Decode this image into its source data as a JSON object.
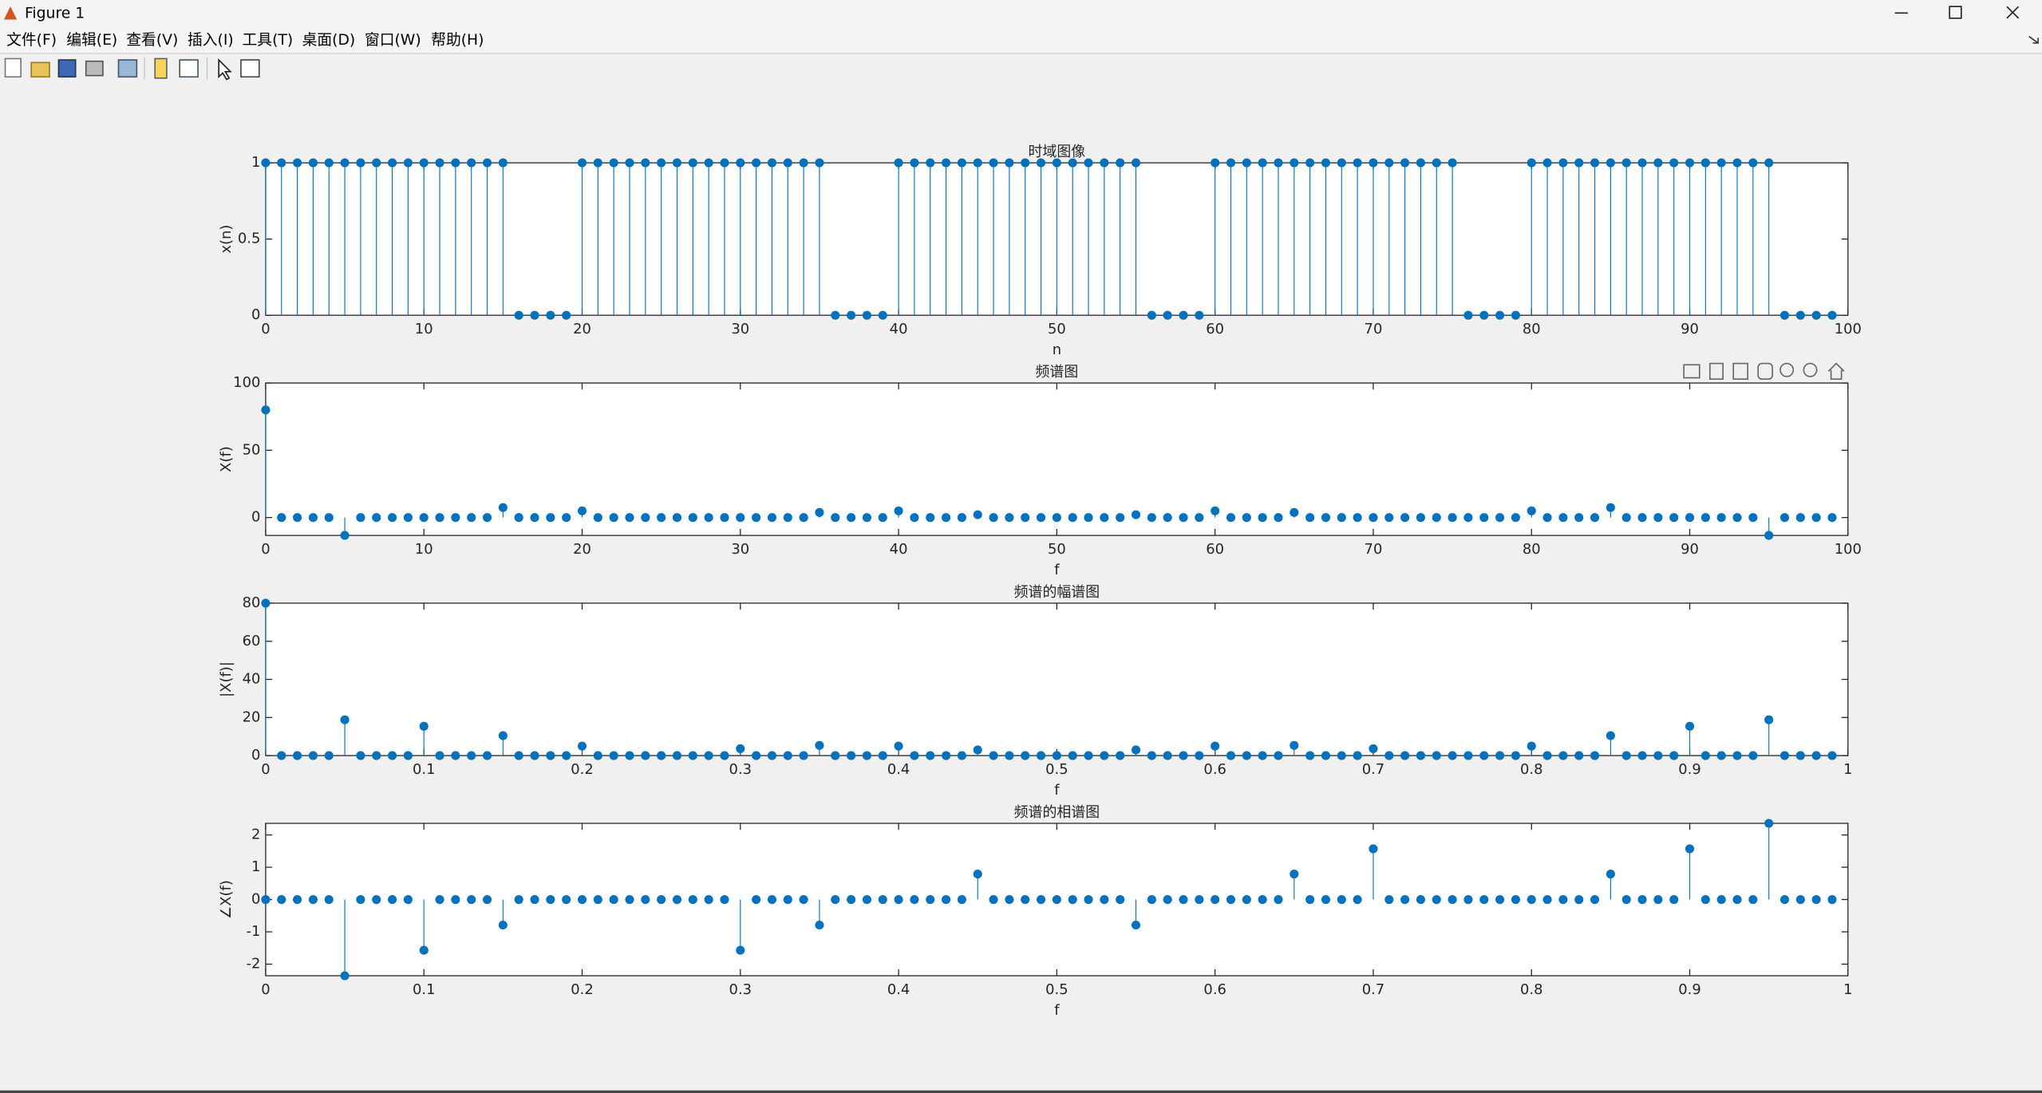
{
  "window": {
    "title": "Figure 1",
    "menu": [
      "文件(F)",
      "编辑(E)",
      "查看(V)",
      "插入(I)",
      "工具(T)",
      "桌面(D)",
      "窗口(W)",
      "帮助(H)"
    ]
  },
  "chart_data": [
    {
      "type": "stem",
      "title": "时域图像",
      "xlabel": "n",
      "ylabel": "x(n)",
      "color": "#0072bd",
      "xlim": [
        0,
        100
      ],
      "ylim": [
        0,
        1
      ],
      "xticks": [
        0,
        10,
        20,
        30,
        40,
        50,
        60,
        70,
        80,
        90,
        100
      ],
      "yticks": [
        0,
        0.5,
        1
      ],
      "x": [
        0,
        1,
        2,
        3,
        4,
        5,
        6,
        7,
        8,
        9,
        10,
        11,
        12,
        13,
        14,
        15,
        16,
        17,
        18,
        19,
        20,
        21,
        22,
        23,
        24,
        25,
        26,
        27,
        28,
        29,
        30,
        31,
        32,
        33,
        34,
        35,
        36,
        37,
        38,
        39,
        40,
        41,
        42,
        43,
        44,
        45,
        46,
        47,
        48,
        49,
        50,
        51,
        52,
        53,
        54,
        55,
        56,
        57,
        58,
        59,
        60,
        61,
        62,
        63,
        64,
        65,
        66,
        67,
        68,
        69,
        70,
        71,
        72,
        73,
        74,
        75,
        76,
        77,
        78,
        79,
        80,
        81,
        82,
        83,
        84,
        85,
        86,
        87,
        88,
        89,
        90,
        91,
        92,
        93,
        94,
        95,
        96,
        97,
        98,
        99
      ],
      "values": [
        1,
        1,
        1,
        1,
        1,
        1,
        1,
        1,
        1,
        1,
        1,
        1,
        1,
        1,
        1,
        1,
        0,
        0,
        0,
        0,
        1,
        1,
        1,
        1,
        1,
        1,
        1,
        1,
        1,
        1,
        1,
        1,
        1,
        1,
        1,
        1,
        0,
        0,
        0,
        0,
        1,
        1,
        1,
        1,
        1,
        1,
        1,
        1,
        1,
        1,
        1,
        1,
        1,
        1,
        1,
        1,
        0,
        0,
        0,
        0,
        1,
        1,
        1,
        1,
        1,
        1,
        1,
        1,
        1,
        1,
        1,
        1,
        1,
        1,
        1,
        1,
        0,
        0,
        0,
        0,
        1,
        1,
        1,
        1,
        1,
        1,
        1,
        1,
        1,
        1,
        1,
        1,
        1,
        1,
        1,
        1,
        0,
        0,
        0,
        0
      ]
    },
    {
      "type": "stem",
      "title": "频谱图",
      "xlabel": "f",
      "ylabel": "X(f)",
      "color": "#0072bd",
      "xlim": [
        0,
        100
      ],
      "ylim": [
        -13.3,
        100
      ],
      "xticks": [
        0,
        10,
        20,
        30,
        40,
        50,
        60,
        70,
        80,
        90,
        100
      ],
      "yticks": [
        0,
        50,
        100
      ],
      "x": [
        0,
        1,
        2,
        3,
        4,
        5,
        6,
        7,
        8,
        9,
        10,
        11,
        12,
        13,
        14,
        15,
        16,
        17,
        18,
        19,
        20,
        21,
        22,
        23,
        24,
        25,
        26,
        27,
        28,
        29,
        30,
        31,
        32,
        33,
        34,
        35,
        36,
        37,
        38,
        39,
        40,
        41,
        42,
        43,
        44,
        45,
        46,
        47,
        48,
        49,
        50,
        51,
        52,
        53,
        54,
        55,
        56,
        57,
        58,
        59,
        60,
        61,
        62,
        63,
        64,
        65,
        66,
        67,
        68,
        69,
        70,
        71,
        72,
        73,
        74,
        75,
        76,
        77,
        78,
        79,
        80,
        81,
        82,
        83,
        84,
        85,
        86,
        87,
        88,
        89,
        90,
        91,
        92,
        93,
        94,
        95,
        96,
        97,
        98,
        99
      ],
      "values": [
        80,
        0,
        0,
        0,
        0,
        -13.29,
        0,
        0,
        0,
        0,
        0,
        0,
        0,
        0,
        0,
        7.4,
        0,
        0,
        0,
        0,
        5,
        0,
        0,
        0,
        0,
        0,
        0,
        0,
        0,
        0,
        0,
        0,
        0,
        0,
        0,
        3.78,
        0,
        0,
        0,
        0,
        5,
        0,
        0,
        0,
        0,
        2.11,
        0,
        0,
        0,
        0,
        0,
        0,
        0,
        0,
        0,
        2.11,
        0,
        0,
        0,
        0,
        5,
        0,
        0,
        0,
        0,
        3.78,
        0,
        0,
        0,
        0,
        0,
        0,
        0,
        0,
        0,
        0,
        0,
        0,
        0,
        0,
        5,
        0,
        0,
        0,
        0,
        7.4,
        0,
        0,
        0,
        0,
        0,
        0,
        0,
        0,
        0,
        -13.29,
        0,
        0,
        0,
        0
      ]
    },
    {
      "type": "stem",
      "title": "频谱的幅谱图",
      "xlabel": "f",
      "ylabel": "|X(f)|",
      "color": "#0072bd",
      "xlim": [
        0,
        1
      ],
      "ylim": [
        0,
        80
      ],
      "xticks": [
        0,
        0.1,
        0.2,
        0.3,
        0.4,
        0.5,
        0.6,
        0.7,
        0.8,
        0.9,
        1
      ],
      "yticks": [
        0,
        20,
        40,
        60,
        80
      ],
      "x": [
        0,
        0.01,
        0.02,
        0.03,
        0.04,
        0.05,
        0.06,
        0.07,
        0.08,
        0.09,
        0.1,
        0.11,
        0.12,
        0.13,
        0.14,
        0.15,
        0.16,
        0.17,
        0.18,
        0.19,
        0.2,
        0.21,
        0.22,
        0.23,
        0.24,
        0.25,
        0.26,
        0.27,
        0.28,
        0.29,
        0.3,
        0.31,
        0.32,
        0.33,
        0.34,
        0.35,
        0.36,
        0.37,
        0.38,
        0.39,
        0.4,
        0.41,
        0.42,
        0.43,
        0.44,
        0.45,
        0.46,
        0.47,
        0.48,
        0.49,
        0.5,
        0.51,
        0.52,
        0.53,
        0.54,
        0.55,
        0.56,
        0.57,
        0.58,
        0.59,
        0.6,
        0.61,
        0.62,
        0.63,
        0.64,
        0.65,
        0.66,
        0.67,
        0.68,
        0.69,
        0.7,
        0.71,
        0.72,
        0.73,
        0.74,
        0.75,
        0.76,
        0.77,
        0.78,
        0.79,
        0.8,
        0.81,
        0.82,
        0.83,
        0.84,
        0.85,
        0.86,
        0.87,
        0.88,
        0.89,
        0.9,
        0.91,
        0.92,
        0.93,
        0.94,
        0.95,
        0.96,
        0.97,
        0.98,
        0.99
      ],
      "values": [
        80,
        0,
        0,
        0,
        0,
        18.79,
        0,
        0,
        0,
        0,
        15.39,
        0,
        0,
        0,
        0,
        10.47,
        0,
        0,
        0,
        0,
        5,
        0,
        0,
        0,
        0,
        0,
        0,
        0,
        0,
        0,
        3.63,
        0,
        0,
        0,
        0,
        5.34,
        0,
        0,
        0,
        0,
        5,
        0,
        0,
        0,
        0,
        2.98,
        0,
        0,
        0,
        0,
        0,
        0,
        0,
        0,
        0,
        2.98,
        0,
        0,
        0,
        0,
        5,
        0,
        0,
        0,
        0,
        5.34,
        0,
        0,
        0,
        0,
        3.63,
        0,
        0,
        0,
        0,
        0,
        0,
        0,
        0,
        0,
        5,
        0,
        0,
        0,
        0,
        10.47,
        0,
        0,
        0,
        0,
        15.39,
        0,
        0,
        0,
        0,
        18.79,
        0,
        0,
        0,
        0
      ]
    },
    {
      "type": "stem",
      "title": "频谱的相谱图",
      "xlabel": "f",
      "ylabel": "∠X(f)",
      "color": "#0072bd",
      "xlim": [
        0,
        1
      ],
      "ylim": [
        -2.36,
        2.36
      ],
      "xticks": [
        0,
        0.1,
        0.2,
        0.3,
        0.4,
        0.5,
        0.6,
        0.7,
        0.8,
        0.9,
        1
      ],
      "yticks": [
        -2,
        -1,
        0,
        1,
        2
      ],
      "x": [
        0,
        0.01,
        0.02,
        0.03,
        0.04,
        0.05,
        0.06,
        0.07,
        0.08,
        0.09,
        0.1,
        0.11,
        0.12,
        0.13,
        0.14,
        0.15,
        0.16,
        0.17,
        0.18,
        0.19,
        0.2,
        0.21,
        0.22,
        0.23,
        0.24,
        0.25,
        0.26,
        0.27,
        0.28,
        0.29,
        0.3,
        0.31,
        0.32,
        0.33,
        0.34,
        0.35,
        0.36,
        0.37,
        0.38,
        0.39,
        0.4,
        0.41,
        0.42,
        0.43,
        0.44,
        0.45,
        0.46,
        0.47,
        0.48,
        0.49,
        0.5,
        0.51,
        0.52,
        0.53,
        0.54,
        0.55,
        0.56,
        0.57,
        0.58,
        0.59,
        0.6,
        0.61,
        0.62,
        0.63,
        0.64,
        0.65,
        0.66,
        0.67,
        0.68,
        0.69,
        0.7,
        0.71,
        0.72,
        0.73,
        0.74,
        0.75,
        0.76,
        0.77,
        0.78,
        0.79,
        0.8,
        0.81,
        0.82,
        0.83,
        0.84,
        0.85,
        0.86,
        0.87,
        0.88,
        0.89,
        0.9,
        0.91,
        0.92,
        0.93,
        0.94,
        0.95,
        0.96,
        0.97,
        0.98,
        0.99
      ],
      "values": [
        0,
        0,
        0,
        0,
        0,
        -2.36,
        0,
        0,
        0,
        0,
        -1.57,
        0,
        0,
        0,
        0,
        -0.79,
        0,
        0,
        0,
        0,
        0,
        0,
        0,
        0,
        0,
        0,
        0,
        0,
        0,
        0,
        -1.57,
        0,
        0,
        0,
        0,
        -0.79,
        0,
        0,
        0,
        0,
        0,
        0,
        0,
        0,
        0,
        0.79,
        0,
        0,
        0,
        0,
        0,
        0,
        0,
        0,
        0,
        -0.79,
        0,
        0,
        0,
        0,
        0,
        0,
        0,
        0,
        0,
        0.79,
        0,
        0,
        0,
        0,
        1.57,
        0,
        0,
        0,
        0,
        0,
        0,
        0,
        0,
        0,
        0,
        0,
        0,
        0,
        0,
        0.79,
        0,
        0,
        0,
        0,
        1.57,
        0,
        0,
        0,
        0,
        2.36,
        0,
        0,
        0,
        0
      ]
    }
  ]
}
